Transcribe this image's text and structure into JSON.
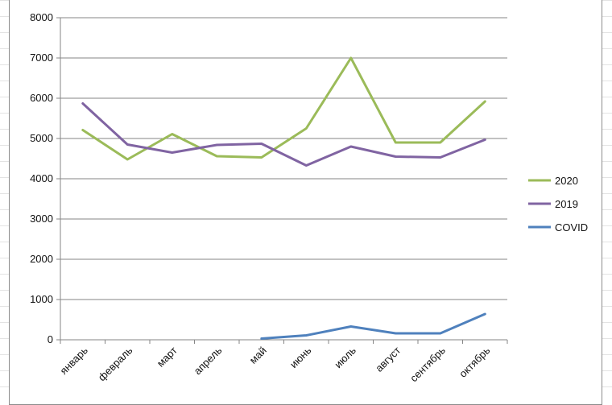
{
  "chart_data": {
    "type": "line",
    "categories": [
      "январь",
      "февраль",
      "март",
      "апрель",
      "май",
      "июнь",
      "июль",
      "август",
      "сентябрь",
      "октябрь"
    ],
    "series": [
      {
        "name": "2020",
        "color": "#9bbb59",
        "values": [
          5210,
          4480,
          5110,
          4560,
          4530,
          5250,
          7000,
          4900,
          4900,
          5920
        ]
      },
      {
        "name": "2019",
        "color": "#8064a2",
        "values": [
          5870,
          4850,
          4650,
          4840,
          4870,
          4330,
          4800,
          4550,
          4530,
          4970
        ]
      },
      {
        "name": "COVID",
        "color": "#4f81bd",
        "values": [
          null,
          null,
          null,
          null,
          30,
          110,
          330,
          160,
          160,
          640
        ]
      }
    ],
    "yticks": [
      "0",
      "1000",
      "2000",
      "3000",
      "4000",
      "5000",
      "6000",
      "7000",
      "8000"
    ],
    "ylim": [
      0,
      8000
    ],
    "grid": true,
    "legend": "right"
  }
}
